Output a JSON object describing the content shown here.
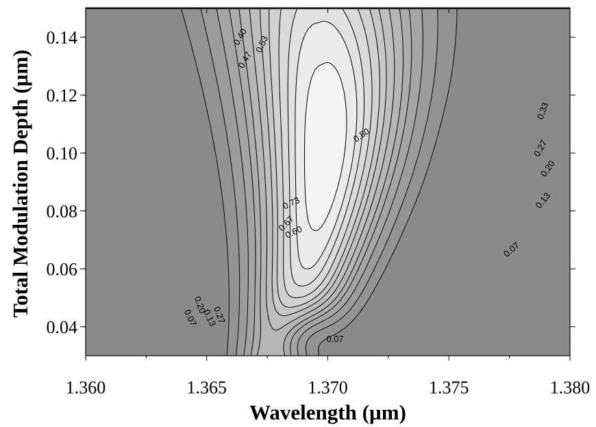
{
  "chart_data": {
    "type": "contour",
    "title": "",
    "xlabel": "Wavelength (µm)",
    "ylabel": "Total Modulation Depth (µm)",
    "xlim": [
      1.36,
      1.38
    ],
    "ylim": [
      0.03,
      0.15
    ],
    "x_ticks": [
      {
        "value": 1.36,
        "label": "1.360"
      },
      {
        "value": 1.365,
        "label": "1.365"
      },
      {
        "value": 1.37,
        "label": "1.370"
      },
      {
        "value": 1.375,
        "label": "1.375"
      },
      {
        "value": 1.38,
        "label": "1.380"
      }
    ],
    "y_ticks": [
      {
        "value": 0.04,
        "label": "0.04"
      },
      {
        "value": 0.06,
        "label": "0.06"
      },
      {
        "value": 0.08,
        "label": "0.08"
      },
      {
        "value": 0.1,
        "label": "0.10"
      },
      {
        "value": 0.12,
        "label": "0.12"
      },
      {
        "value": 0.14,
        "label": "0.14"
      }
    ],
    "levels": [
      0.07,
      0.13,
      0.2,
      0.27,
      0.33,
      0.4,
      0.47,
      0.53,
      0.6,
      0.67,
      0.73,
      0.8
    ],
    "peak": {
      "x": 1.3695,
      "y": 0.102,
      "value": 0.86
    },
    "colormap": {
      "low": "#8a8a8a",
      "high": "#f4f4f4"
    },
    "contour_labels": [
      {
        "text": "0.40",
        "x": 1.3664,
        "y": 0.14,
        "angle": -60
      },
      {
        "text": "0.47",
        "x": 1.3666,
        "y": 0.132,
        "angle": -60
      },
      {
        "text": "0.53",
        "x": 1.3673,
        "y": 0.1375,
        "angle": -65
      },
      {
        "text": "0.80",
        "x": 1.3714,
        "y": 0.106,
        "angle": -35
      },
      {
        "text": "0.73",
        "x": 1.3685,
        "y": 0.0825,
        "angle": -25
      },
      {
        "text": "0.67",
        "x": 1.3683,
        "y": 0.0755,
        "angle": -45
      },
      {
        "text": "0.60",
        "x": 1.3686,
        "y": 0.0725,
        "angle": -25
      },
      {
        "text": "0.33",
        "x": 1.3789,
        "y": 0.1145,
        "angle": -70
      },
      {
        "text": "0.27",
        "x": 1.3788,
        "y": 0.1015,
        "angle": -60
      },
      {
        "text": "0.20",
        "x": 1.3791,
        "y": 0.0945,
        "angle": -55
      },
      {
        "text": "0.13",
        "x": 1.3789,
        "y": 0.0835,
        "angle": -50
      },
      {
        "text": "0.07",
        "x": 1.3776,
        "y": 0.0665,
        "angle": -40
      },
      {
        "text": "0.07",
        "x": 1.3703,
        "y": 0.0355,
        "angle": 0
      },
      {
        "text": "0.20",
        "x": 1.3647,
        "y": 0.0475,
        "angle": 70
      },
      {
        "text": "0.07",
        "x": 1.3643,
        "y": 0.043,
        "angle": 65
      },
      {
        "text": "0.13",
        "x": 1.3651,
        "y": 0.043,
        "angle": 65
      },
      {
        "text": "0.27",
        "x": 1.3655,
        "y": 0.044,
        "angle": 70
      }
    ]
  }
}
